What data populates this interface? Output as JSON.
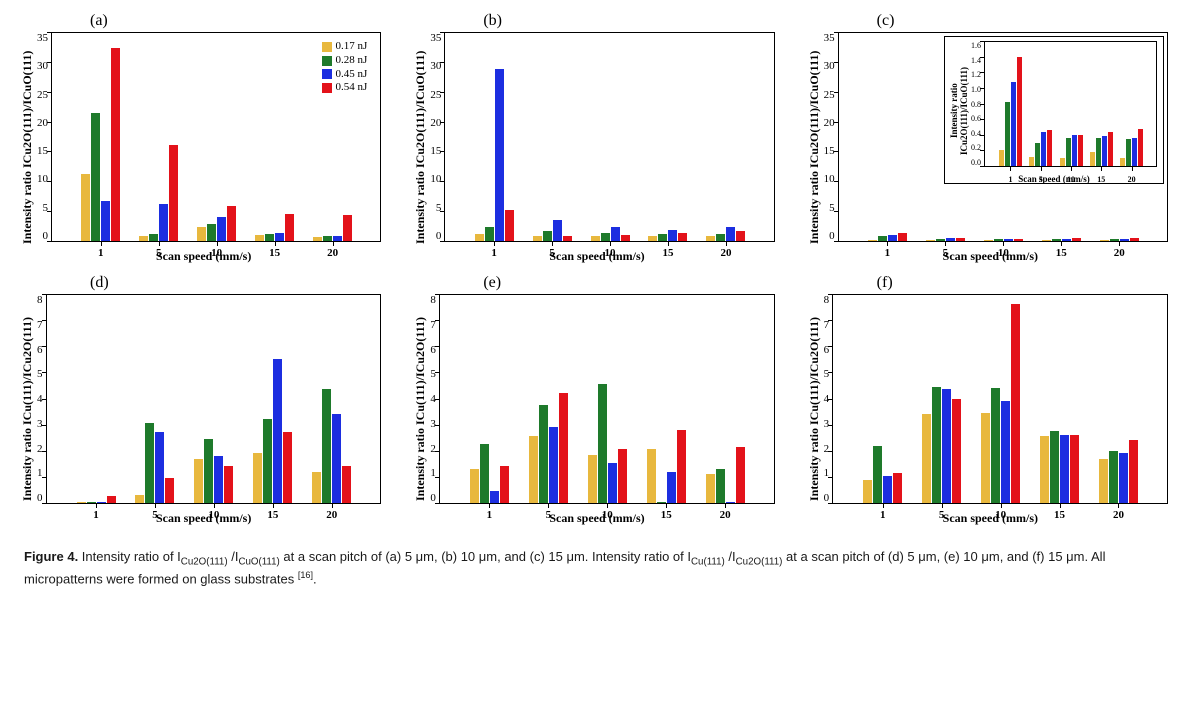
{
  "colors": {
    "series": {
      "s1": "#e8b83e",
      "s2": "#1e7a2b",
      "s3": "#1c2ee0",
      "s4": "#e3121a"
    },
    "axis": "#000000",
    "background": "#ffffff"
  },
  "legend_labels": {
    "s1": "0.17 nJ",
    "s2": "0.28 nJ",
    "s3": "0.45 nJ",
    "s4": "0.54 nJ"
  },
  "x_categories": [
    "1",
    "5",
    "10",
    "15",
    "20"
  ],
  "x_axis_label": "Scan speed (mm/s)",
  "panels": {
    "a": {
      "label": "(a)",
      "y_label": "Intensity ratio ICu2O(111)/ICuO(111)",
      "ylim": [
        0,
        35
      ],
      "ytick_step": 5,
      "show_legend": true,
      "data": {
        "s1": [
          11.2,
          0.9,
          2.4,
          1.0,
          0.7
        ],
        "s2": [
          21.4,
          1.1,
          2.9,
          1.2,
          0.9
        ],
        "s3": [
          6.7,
          6.2,
          4.0,
          1.4,
          0.8
        ],
        "s4": [
          32.4,
          16.0,
          5.9,
          4.6,
          4.3
        ]
      }
    },
    "b": {
      "label": "(b)",
      "y_label": "Intensity ratio ICu2O(111)/ICuO(111)",
      "ylim": [
        0,
        35
      ],
      "ytick_step": 5,
      "show_legend": false,
      "data": {
        "s1": [
          1.2,
          0.8,
          0.9,
          0.8,
          0.8
        ],
        "s2": [
          2.4,
          1.6,
          1.4,
          1.2,
          1.2
        ],
        "s3": [
          28.8,
          3.6,
          2.4,
          1.8,
          2.4
        ],
        "s4": [
          5.2,
          0.8,
          1.0,
          1.4,
          1.6
        ]
      }
    },
    "c": {
      "label": "(c)",
      "y_label": "Intensity ratio ICu2O(111)/ICuO(111)",
      "ylim": [
        0,
        35
      ],
      "ytick_step": 5,
      "show_legend": false,
      "data": {
        "s1": [
          0.2,
          0.12,
          0.1,
          0.18,
          0.1
        ],
        "s2": [
          0.82,
          0.3,
          0.36,
          0.36,
          0.34
        ],
        "s3": [
          1.08,
          0.44,
          0.4,
          0.38,
          0.36
        ],
        "s4": [
          1.4,
          0.46,
          0.4,
          0.44,
          0.48
        ]
      },
      "inset": {
        "y_label": "Intensity ratio ICu2O(111)/ICuO(111)",
        "ylim": [
          0,
          1.6
        ],
        "ytick_step": 0.2,
        "data": {
          "s1": [
            0.2,
            0.12,
            0.1,
            0.18,
            0.1
          ],
          "s2": [
            0.82,
            0.3,
            0.36,
            0.36,
            0.34
          ],
          "s3": [
            1.08,
            0.44,
            0.4,
            0.38,
            0.36
          ],
          "s4": [
            1.4,
            0.46,
            0.4,
            0.44,
            0.48
          ]
        }
      }
    },
    "d": {
      "label": "(d)",
      "y_label": "Intensity ratio ICu(111)/ICu2O(111)",
      "ylim": [
        0,
        8
      ],
      "ytick_step": 1,
      "show_legend": false,
      "data": {
        "s1": [
          0.02,
          0.3,
          1.7,
          1.9,
          1.2
        ],
        "s2": [
          0.02,
          3.05,
          2.45,
          3.2,
          4.35
        ],
        "s3": [
          0.02,
          2.7,
          1.8,
          5.5,
          3.4
        ],
        "s4": [
          0.25,
          0.95,
          1.4,
          2.7,
          1.4
        ]
      }
    },
    "e": {
      "label": "(e)",
      "y_label": "Intensity ratio ICu(111)/ICu2O(111)",
      "ylim": [
        0,
        8
      ],
      "ytick_step": 1,
      "show_legend": false,
      "data": {
        "s1": [
          1.3,
          2.55,
          1.85,
          2.05,
          1.1
        ],
        "s2": [
          2.25,
          3.75,
          4.55,
          0.05,
          1.3
        ],
        "s3": [
          0.45,
          2.9,
          1.55,
          1.2,
          0.05
        ],
        "s4": [
          1.4,
          4.2,
          2.05,
          2.8,
          2.15
        ]
      }
    },
    "f": {
      "label": "(f)",
      "y_label": "Intensity ratio ICu(111)/ICu2O(111)",
      "ylim": [
        0,
        8
      ],
      "ytick_step": 1,
      "show_legend": false,
      "data": {
        "s1": [
          0.9,
          3.4,
          3.45,
          2.55,
          1.7
        ],
        "s2": [
          2.2,
          4.45,
          4.4,
          2.75,
          2.0
        ],
        "s3": [
          1.05,
          4.35,
          3.9,
          2.6,
          1.9
        ],
        "s4": [
          1.15,
          4.0,
          7.6,
          2.6,
          2.4
        ]
      }
    }
  },
  "caption": {
    "lead": "Figure 4.",
    "text_before_sub1": " Intensity ratio of I",
    "sub1": "Cu2O(111)",
    "slash": " /I",
    "sub2": "CuO(111)",
    "text_mid": " at a scan pitch of (a) 5 μm, (b) 10 μm, and (c) 15 μm. Intensity ratio of I",
    "sub3": "Cu(111)",
    "slash2": " /I",
    "sub4": "Cu2O(111)",
    "text_after": " at a scan pitch of (d) 5 μm, (e) 10 μm, and (f) 15 μm. All micropatterns were formed on glass substrates ",
    "ref": "[16]",
    "period": "."
  }
}
